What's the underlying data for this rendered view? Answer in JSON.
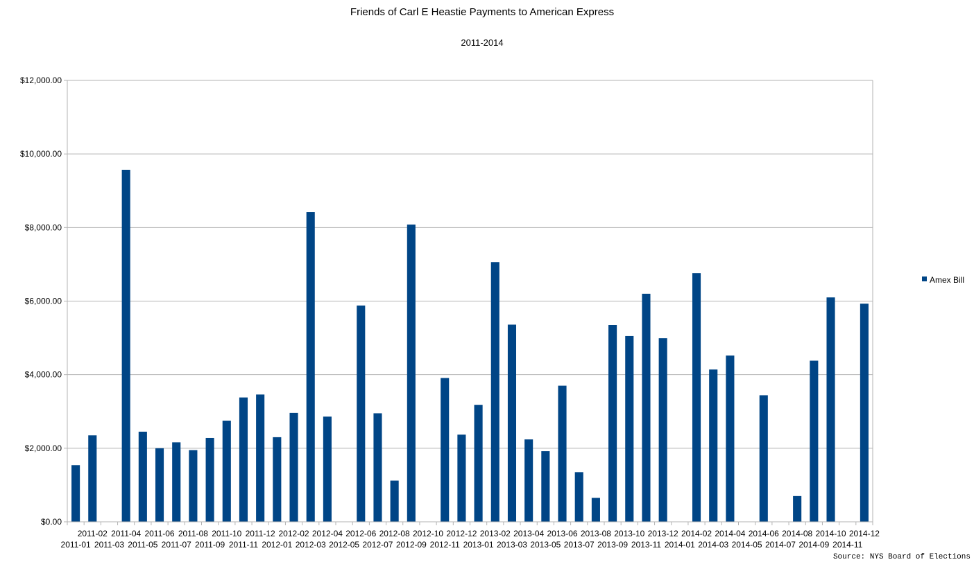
{
  "chart_data": {
    "type": "bar",
    "title": "Friends of Carl E Heastie Payments to American Express",
    "subtitle": "2011-2014",
    "xlabel": "",
    "ylabel": "",
    "ylim": [
      0,
      12000
    ],
    "yticks": [
      0,
      2000,
      4000,
      6000,
      8000,
      10000,
      12000
    ],
    "ytick_labels": [
      "$0.00",
      "$2,000.00",
      "$4,000.00",
      "$6,000.00",
      "$8,000.00",
      "$10,000.00",
      "$12,000.00"
    ],
    "grid": true,
    "legend_position": "right",
    "categories": [
      "2011-01",
      "2011-02",
      "2011-03",
      "2011-04",
      "2011-05",
      "2011-06",
      "2011-07",
      "2011-08",
      "2011-09",
      "2011-10",
      "2011-11",
      "2011-12",
      "2012-01",
      "2012-02",
      "2012-03",
      "2012-04",
      "2012-05",
      "2012-06",
      "2012-07",
      "2012-08",
      "2012-09",
      "2012-10",
      "2012-11",
      "2012-12",
      "2013-01",
      "2013-02",
      "2013-03",
      "2013-04",
      "2013-05",
      "2013-06",
      "2013-07",
      "2013-08",
      "2013-09",
      "2013-10",
      "2013-11",
      "2013-12",
      "2014-01",
      "2014-02",
      "2014-03",
      "2014-04",
      "2014-05",
      "2014-06",
      "2014-07",
      "2014-08",
      "2014-09",
      "2014-10",
      "2014-11",
      "2014-12"
    ],
    "series": [
      {
        "name": "Amex Bill",
        "color": "#004586",
        "values": [
          1540,
          2350,
          0,
          9570,
          2450,
          2000,
          2160,
          1950,
          2280,
          2750,
          3380,
          3460,
          2300,
          2960,
          8420,
          2860,
          0,
          5880,
          2950,
          1120,
          8080,
          0,
          3910,
          2370,
          3180,
          7060,
          5360,
          2240,
          1920,
          3700,
          1350,
          650,
          5350,
          5050,
          6200,
          4990,
          0,
          6760,
          4140,
          4520,
          0,
          3440,
          0,
          700,
          4380,
          6100,
          0,
          5930
        ]
      }
    ],
    "source": "Source: NYS Board of Elections"
  }
}
